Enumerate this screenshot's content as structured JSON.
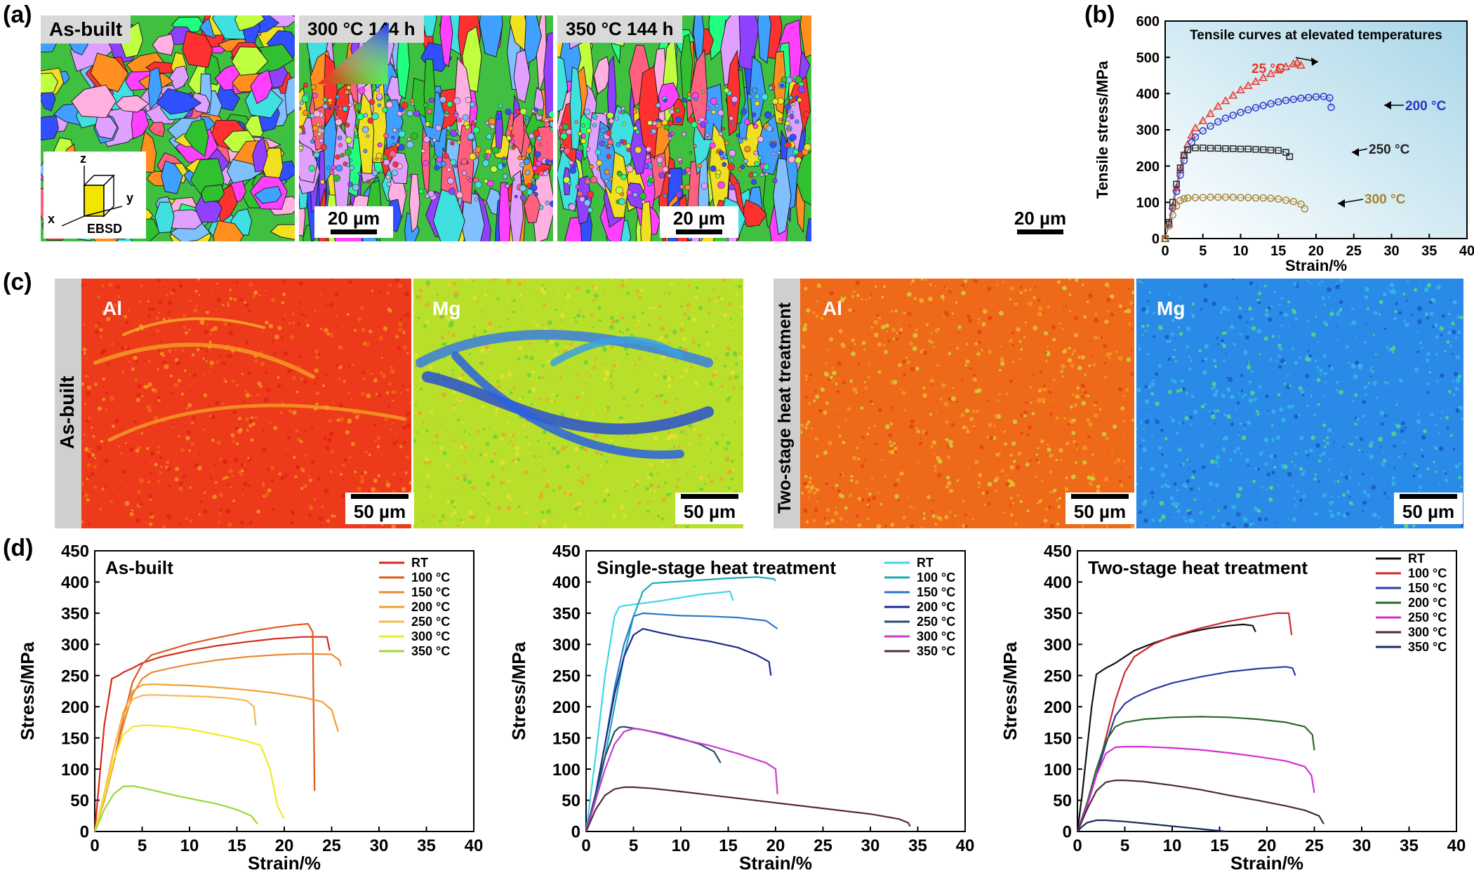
{
  "panel_labels": {
    "a": "(a)",
    "b": "(b)",
    "c": "(c)",
    "d": "(d)"
  },
  "panel_a": {
    "maps": [
      {
        "label": "As-built",
        "scale": "20 µm"
      },
      {
        "label": "300 °C 144 h",
        "scale": "20 µm"
      },
      {
        "label": "350 °C 144 h",
        "scale": "20 µm"
      }
    ],
    "axis_glyph": {
      "z": "z",
      "y": "y",
      "x": "x",
      "caption": "EBSD"
    }
  },
  "panel_c": {
    "left_group_label": "As-built",
    "right_group_label": "Two-stage heat treatment",
    "maps": [
      {
        "element": "Al",
        "scale": "50 µm"
      },
      {
        "element": "Mg",
        "scale": "50 µm"
      },
      {
        "element": "Al",
        "scale": "50 µm"
      },
      {
        "element": "Mg",
        "scale": "50 µm"
      }
    ]
  },
  "chart_data": [
    {
      "id": "b",
      "type": "scatter",
      "title": "Tensile curves at elevated temperatures",
      "xlabel": "Strain/%",
      "ylabel": "Tensile stress/MPa",
      "xlim": [
        0,
        40
      ],
      "ylim": [
        0,
        600
      ],
      "xticks": [
        "0",
        "5",
        "10",
        "15",
        "20",
        "25",
        "30",
        "35",
        "40"
      ],
      "yticks": [
        "0",
        "100",
        "200",
        "300",
        "400",
        "500",
        "600"
      ],
      "background": "gradient white-to-light-blue",
      "series": [
        {
          "name": "25 °C",
          "color": "#e8352a",
          "marker": "triangle",
          "x": [
            0,
            0.5,
            1,
            1.5,
            2,
            2.5,
            3,
            3.5,
            4,
            5,
            6,
            7,
            8,
            9,
            10,
            11,
            12,
            13,
            14,
            15,
            16,
            17,
            17.5,
            18
          ],
          "y": [
            0,
            40,
            90,
            140,
            190,
            230,
            260,
            285,
            305,
            325,
            345,
            365,
            380,
            395,
            410,
            422,
            433,
            444,
            455,
            465,
            474,
            482,
            486,
            478
          ]
        },
        {
          "name": "200 °C",
          "color": "#2a33c8",
          "marker": "circle",
          "x": [
            0,
            0.5,
            1,
            1.5,
            2,
            2.5,
            3,
            3.5,
            4,
            5,
            6,
            7,
            8,
            9,
            10,
            11,
            12,
            13,
            14,
            15,
            16,
            17,
            18,
            19,
            20,
            21,
            21.8,
            22
          ],
          "y": [
            0,
            40,
            85,
            130,
            175,
            215,
            245,
            265,
            280,
            297,
            310,
            322,
            332,
            340,
            348,
            355,
            361,
            367,
            372,
            377,
            381,
            384,
            387,
            389,
            391,
            392,
            388,
            362
          ]
        },
        {
          "name": "250 °C",
          "color": "#222222",
          "marker": "square",
          "x": [
            0,
            0.5,
            1,
            1.5,
            2,
            2.5,
            3,
            4,
            5,
            6,
            7,
            8,
            9,
            10,
            11,
            12,
            13,
            14,
            15,
            16,
            16.5
          ],
          "y": [
            0,
            45,
            100,
            150,
            195,
            230,
            245,
            250,
            250,
            249,
            249,
            248,
            248,
            247,
            247,
            246,
            245,
            244,
            243,
            238,
            226
          ]
        },
        {
          "name": "300 °C",
          "color": "#a6822f",
          "marker": "circle",
          "x": [
            0,
            0.5,
            1,
            1.5,
            2,
            2.5,
            3,
            4,
            5,
            6,
            7,
            8,
            9,
            10,
            11,
            12,
            13,
            14,
            15,
            16,
            17,
            18,
            18.5
          ],
          "y": [
            0,
            35,
            65,
            90,
            105,
            110,
            112,
            113,
            113,
            114,
            114,
            114,
            114,
            113,
            113,
            112,
            112,
            111,
            109,
            106,
            102,
            95,
            82
          ]
        }
      ],
      "annotations": [
        "25 °C",
        "200 °C",
        "250 °C",
        "300 °C"
      ]
    },
    {
      "id": "d1",
      "type": "line",
      "title": "As-built",
      "xlabel": "Strain/%",
      "ylabel": "Stress/MPa",
      "xlim": [
        0,
        40
      ],
      "ylim": [
        0,
        450
      ],
      "xticks": [
        "0",
        "5",
        "10",
        "15",
        "20",
        "25",
        "30",
        "35",
        "40"
      ],
      "yticks": [
        "0",
        "50",
        "100",
        "150",
        "200",
        "250",
        "300",
        "350",
        "400",
        "450"
      ],
      "legend_position": "top-right",
      "series": [
        {
          "name": "RT",
          "color": "#d42a1a",
          "x": [
            0,
            1,
            1.8,
            2.5,
            3,
            4,
            5,
            7,
            10,
            13,
            16,
            19,
            22,
            24.5,
            24.8
          ],
          "y": [
            0,
            170,
            245,
            250,
            255,
            262,
            270,
            280,
            290,
            298,
            304,
            309,
            312,
            312,
            290
          ]
        },
        {
          "name": "100 °C",
          "color": "#e0581a",
          "x": [
            0,
            1,
            2,
            3,
            4,
            5,
            6,
            8,
            10,
            13,
            16,
            19,
            21,
            22.5,
            23,
            23.2
          ],
          "y": [
            0,
            50,
            110,
            180,
            240,
            268,
            283,
            292,
            301,
            311,
            320,
            327,
            331,
            333,
            320,
            65
          ]
        },
        {
          "name": "150 °C",
          "color": "#e88a35",
          "x": [
            0,
            1,
            2,
            3,
            4,
            5,
            6,
            8,
            10,
            13,
            16,
            19,
            22,
            25,
            25.8,
            26
          ],
          "y": [
            0,
            50,
            110,
            170,
            220,
            245,
            255,
            262,
            268,
            275,
            280,
            283,
            285,
            284,
            275,
            265
          ]
        },
        {
          "name": "200 °C",
          "color": "#f0a030",
          "x": [
            0,
            1,
            2,
            3,
            4,
            5,
            6,
            8,
            10,
            13,
            16,
            19,
            22,
            24,
            25,
            25.7
          ],
          "y": [
            0,
            60,
            130,
            190,
            225,
            235,
            236,
            235,
            234,
            231,
            227,
            222,
            215,
            208,
            195,
            160
          ]
        },
        {
          "name": "250 °C",
          "color": "#f5b850",
          "x": [
            0,
            1,
            2,
            3,
            4,
            5,
            6,
            8,
            10,
            12,
            14,
            16,
            16.8,
            17
          ],
          "y": [
            0,
            60,
            130,
            185,
            212,
            218,
            219,
            218,
            217,
            216,
            214,
            210,
            200,
            170
          ]
        },
        {
          "name": "300 °C",
          "color": "#f2ea20",
          "x": [
            0,
            1,
            2,
            3,
            4,
            5,
            6,
            8,
            10,
            12,
            14,
            16,
            17.5,
            18.5,
            19.3,
            20
          ],
          "y": [
            0,
            55,
            115,
            155,
            168,
            170,
            170,
            168,
            164,
            158,
            152,
            145,
            138,
            100,
            40,
            20
          ]
        },
        {
          "name": "350 °C",
          "color": "#9ad83a",
          "x": [
            0,
            1,
            2,
            3,
            4,
            5,
            7,
            9,
            11,
            13,
            15,
            16.5,
            17.2
          ],
          "y": [
            0,
            35,
            60,
            72,
            73,
            70,
            63,
            56,
            50,
            44,
            35,
            25,
            12
          ]
        }
      ]
    },
    {
      "id": "d2",
      "type": "line",
      "title": "Single-stage heat treatment",
      "xlabel": "Strain/%",
      "ylabel": "Stress/MPa",
      "xlim": [
        0,
        40
      ],
      "ylim": [
        0,
        450
      ],
      "xticks": [
        "0",
        "5",
        "10",
        "15",
        "20",
        "25",
        "30",
        "35",
        "40"
      ],
      "yticks": [
        "0",
        "50",
        "100",
        "150",
        "200",
        "250",
        "300",
        "350",
        "400",
        "450"
      ],
      "legend_position": "top-right",
      "series": [
        {
          "name": "RT",
          "color": "#3fd6e8",
          "x": [
            0,
            1,
            2,
            3,
            3.5,
            4,
            6,
            8,
            10,
            12,
            14,
            15.2,
            15.5
          ],
          "y": [
            0,
            120,
            250,
            345,
            360,
            362,
            366,
            370,
            375,
            380,
            383,
            385,
            370
          ]
        },
        {
          "name": "100 °C",
          "color": "#1aaab8",
          "x": [
            0,
            1,
            2,
            3,
            4,
            5,
            6,
            7,
            9,
            12,
            15,
            18,
            19.8,
            20
          ],
          "y": [
            0,
            50,
            120,
            200,
            280,
            345,
            385,
            398,
            400,
            403,
            406,
            408,
            405,
            402
          ]
        },
        {
          "name": "150 °C",
          "color": "#2a78c8",
          "x": [
            0,
            1,
            2,
            3,
            4,
            5,
            6,
            8,
            10,
            13,
            16,
            19,
            20.2
          ],
          "y": [
            0,
            60,
            140,
            230,
            300,
            345,
            350,
            348,
            346,
            345,
            343,
            338,
            325
          ]
        },
        {
          "name": "200 °C",
          "color": "#1a2a8a",
          "x": [
            0,
            1,
            2,
            3,
            4,
            5,
            6,
            8,
            10,
            13,
            16,
            18,
            19.3,
            19.5
          ],
          "y": [
            0,
            60,
            140,
            220,
            280,
            315,
            325,
            318,
            312,
            305,
            295,
            283,
            272,
            250
          ]
        },
        {
          "name": "250 °C",
          "color": "#2a4a6a",
          "x": [
            0,
            1,
            2,
            3,
            3.5,
            4,
            6,
            8,
            10,
            12,
            13.5,
            14.2
          ],
          "y": [
            0,
            60,
            120,
            160,
            167,
            168,
            163,
            157,
            149,
            140,
            128,
            110
          ]
        },
        {
          "name": "300 °C",
          "color": "#c83ad0",
          "x": [
            0,
            1,
            2,
            3,
            4,
            5,
            6,
            8,
            10,
            13,
            16,
            19,
            20,
            20.2
          ],
          "y": [
            0,
            50,
            100,
            140,
            160,
            165,
            163,
            156,
            148,
            138,
            125,
            110,
            100,
            60
          ]
        },
        {
          "name": "350 °C",
          "color": "#5a2a3a",
          "x": [
            0,
            1,
            2,
            3,
            4,
            5,
            7,
            10,
            15,
            20,
            25,
            30,
            33,
            34,
            34.2
          ],
          "y": [
            0,
            35,
            58,
            68,
            71,
            71,
            69,
            64,
            55,
            46,
            37,
            28,
            20,
            14,
            8
          ]
        }
      ]
    },
    {
      "id": "d3",
      "type": "line",
      "title": "Two-stage heat treatment",
      "xlabel": "Strain/%",
      "ylabel": "Stress/MPa",
      "xlim": [
        0,
        40
      ],
      "ylim": [
        0,
        450
      ],
      "xticks": [
        "0",
        "5",
        "10",
        "15",
        "20",
        "25",
        "30",
        "35",
        "40"
      ],
      "yticks": [
        "0",
        "50",
        "100",
        "150",
        "200",
        "250",
        "300",
        "350",
        "400",
        "450"
      ],
      "legend_position": "top-right",
      "series": [
        {
          "name": "RT",
          "color": "#111111",
          "x": [
            0,
            0.5,
            1,
            1.5,
            2,
            3,
            4,
            5,
            6,
            8,
            10,
            12,
            14,
            16,
            17.5,
            18.5,
            18.8
          ],
          "y": [
            0,
            60,
            130,
            200,
            252,
            262,
            270,
            280,
            290,
            302,
            312,
            320,
            326,
            330,
            332,
            330,
            320
          ]
        },
        {
          "name": "100 °C",
          "color": "#c82a2a",
          "x": [
            0,
            1,
            2,
            3,
            4,
            5,
            6,
            8,
            10,
            13,
            16,
            19,
            21,
            22.3,
            22.6
          ],
          "y": [
            0,
            40,
            90,
            150,
            210,
            255,
            280,
            300,
            313,
            326,
            337,
            345,
            350,
            350,
            315
          ]
        },
        {
          "name": "150 °C",
          "color": "#2a3aa8",
          "x": [
            0,
            1,
            2,
            3,
            4,
            5,
            6,
            8,
            10,
            13,
            16,
            19,
            22,
            22.7,
            23
          ],
          "y": [
            0,
            40,
            90,
            140,
            185,
            205,
            215,
            228,
            238,
            248,
            256,
            261,
            264,
            262,
            250
          ]
        },
        {
          "name": "200 °C",
          "color": "#2a6a2a",
          "x": [
            0,
            1,
            2,
            3,
            4,
            5,
            7,
            10,
            13,
            16,
            19,
            22,
            24,
            24.8,
            25
          ],
          "y": [
            0,
            45,
            100,
            145,
            168,
            175,
            180,
            183,
            184,
            183,
            180,
            175,
            168,
            155,
            130
          ]
        },
        {
          "name": "250 °C",
          "color": "#d82ad8",
          "x": [
            0,
            1,
            2,
            3,
            4,
            5,
            7,
            10,
            13,
            16,
            19,
            22,
            24,
            24.7,
            25
          ],
          "y": [
            0,
            40,
            90,
            125,
            135,
            136,
            136,
            134,
            131,
            126,
            120,
            113,
            104,
            90,
            62
          ]
        },
        {
          "name": "300 °C",
          "color": "#4a2a3a",
          "x": [
            0,
            1,
            2,
            3,
            4,
            5,
            7,
            10,
            13,
            16,
            19,
            22,
            24,
            25.5,
            26
          ],
          "y": [
            0,
            35,
            65,
            79,
            82,
            82,
            80,
            74,
            67,
            58,
            50,
            41,
            34,
            25,
            12
          ]
        },
        {
          "name": "350 °C",
          "color": "#1a2a5a",
          "x": [
            0,
            0.5,
            1,
            2,
            3,
            5,
            7,
            9,
            11,
            13,
            15,
            15.6
          ],
          "y": [
            0,
            8,
            14,
            18,
            18,
            16,
            13,
            10,
            7,
            4,
            1,
            0
          ]
        }
      ]
    }
  ]
}
